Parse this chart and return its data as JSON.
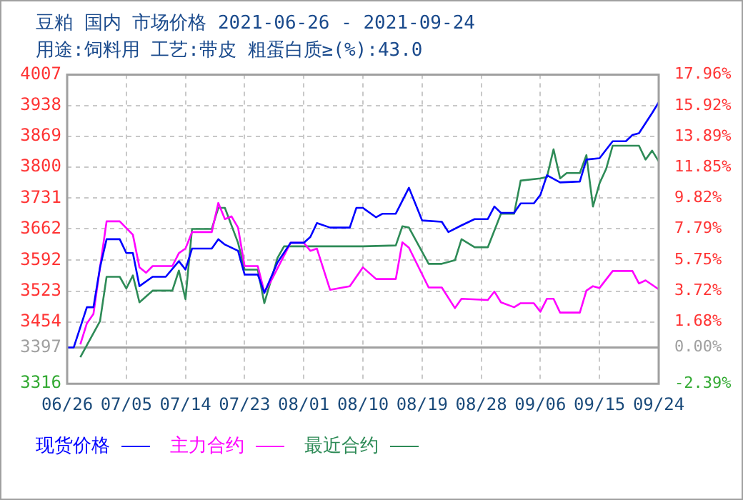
{
  "chart_data": {
    "type": "line",
    "title": "豆粕 国内 市场价格 2021-06-26 - 2021-09-24",
    "subtitle": "用途:饲料用 工艺:带皮 粗蛋白质≥(%):43.0",
    "xlim": [
      "--06-26",
      "--09-24"
    ],
    "xticks": [
      {
        "value": "--06-26",
        "label": "06/26"
      },
      {
        "value": "--07-05",
        "label": "07/05"
      },
      {
        "value": "--07-14",
        "label": "07/14"
      },
      {
        "value": "--07-23",
        "label": "07/23"
      },
      {
        "value": "--08-01",
        "label": "08/01"
      },
      {
        "value": "--08-10",
        "label": "08/10"
      },
      {
        "value": "--08-19",
        "label": "08/19"
      },
      {
        "value": "--08-28",
        "label": "08/28"
      },
      {
        "value": "--09-06",
        "label": "09/06"
      },
      {
        "value": "--09-15",
        "label": "09/15"
      },
      {
        "value": "--09-24",
        "label": "09/24"
      }
    ],
    "ylim": [
      3316,
      4007
    ],
    "yticks": [
      3316,
      3397,
      3454,
      3523,
      3592,
      3662,
      3731,
      3800,
      3869,
      3938,
      4007
    ],
    "y2lim": [
      -2.39,
      17.96
    ],
    "y2ticks": [
      {
        "value": -2.39,
        "label": "-2.39%"
      },
      {
        "value": 0,
        "label": "0.00%"
      },
      {
        "value": 1.68,
        "label": "1.68%"
      },
      {
        "value": 3.72,
        "label": "3.72%"
      },
      {
        "value": 5.75,
        "label": "5.75%"
      },
      {
        "value": 7.79,
        "label": "7.79%"
      },
      {
        "value": 9.82,
        "label": "9.82%"
      },
      {
        "value": 11.85,
        "label": "11.85%"
      },
      {
        "value": 13.89,
        "label": "13.89%"
      },
      {
        "value": 15.92,
        "label": "15.92%"
      },
      {
        "value": 17.96,
        "label": "17.96%"
      }
    ],
    "ref_lines": [
      {
        "axis": "y",
        "value": 3397,
        "color": "#a0a0a0"
      }
    ],
    "grid": true,
    "legend": "bottom",
    "marker": "none",
    "series": [
      {
        "name": "现货价格",
        "color": "#0000ff",
        "x": [
          "--06-26",
          "--06-27",
          "--06-29",
          "--06-30",
          "--07-01",
          "--07-02",
          "--07-04",
          "--07-05",
          "--07-06",
          "--07-07",
          "--07-09",
          "--07-11",
          "--07-13",
          "--07-14",
          "--07-15",
          "--07-18",
          "--07-19",
          "--07-20",
          "--07-22",
          "--07-23",
          "--07-25",
          "--07-26",
          "--07-28",
          "--07-30",
          "--08-01",
          "--08-02",
          "--08-03",
          "--08-05",
          "--08-08",
          "--08-09",
          "--08-10",
          "--08-12",
          "--08-13",
          "--08-15",
          "--08-17",
          "--08-19",
          "--08-22",
          "--08-23",
          "--08-25",
          "--08-27",
          "--08-29",
          "--08-30",
          "--08-31",
          "--09-02",
          "--09-03",
          "--09-05",
          "--09-06",
          "--09-07",
          "--09-09",
          "--09-12",
          "--09-13",
          "--09-15",
          "--09-17",
          "--09-19",
          "--09-20",
          "--09-21",
          "--09-23",
          "--09-24"
        ],
        "values": [
          3397,
          3397,
          3487,
          3487,
          3576,
          3639,
          3639,
          3608,
          3608,
          3534,
          3555,
          3555,
          3590,
          3571,
          3618,
          3618,
          3639,
          3627,
          3613,
          3560,
          3560,
          3519,
          3587,
          3631,
          3631,
          3644,
          3675,
          3665,
          3665,
          3709,
          3709,
          3688,
          3696,
          3696,
          3754,
          3681,
          3678,
          3655,
          3670,
          3684,
          3684,
          3712,
          3698,
          3698,
          3719,
          3719,
          3738,
          3782,
          3766,
          3768,
          3817,
          3820,
          3858,
          3858,
          3872,
          3876,
          3921,
          3945
        ]
      },
      {
        "name": "主力合约",
        "color": "#ff00ff",
        "x": [
          "--06-28",
          "--06-29",
          "--06-30",
          "--07-01",
          "--07-02",
          "--07-04",
          "--07-06",
          "--07-07",
          "--07-08",
          "--07-09",
          "--07-12",
          "--07-13",
          "--07-14",
          "--07-15",
          "--07-18",
          "--07-19",
          "--07-20",
          "--07-21",
          "--07-22",
          "--07-23",
          "--07-25",
          "--07-26",
          "--07-27",
          "--07-30",
          "--08-01",
          "--08-02",
          "--08-03",
          "--08-05",
          "--08-08",
          "--08-10",
          "--08-12",
          "--08-15",
          "--08-16",
          "--08-17",
          "--08-20",
          "--08-22",
          "--08-24",
          "--08-25",
          "--08-29",
          "--08-30",
          "--08-31",
          "--09-02",
          "--09-03",
          "--09-05",
          "--09-06",
          "--09-07",
          "--09-08",
          "--09-09",
          "--09-12",
          "--09-13",
          "--09-14",
          "--09-15",
          "--09-17",
          "--09-20",
          "--09-21",
          "--09-22",
          "--09-24"
        ],
        "values": [
          3404,
          3451,
          3472,
          3576,
          3679,
          3679,
          3649,
          3576,
          3564,
          3579,
          3579,
          3608,
          3618,
          3655,
          3655,
          3720,
          3684,
          3690,
          3665,
          3579,
          3579,
          3521,
          3545,
          3631,
          3631,
          3613,
          3618,
          3526,
          3534,
          3576,
          3550,
          3550,
          3632,
          3620,
          3531,
          3531,
          3485,
          3506,
          3503,
          3522,
          3498,
          3487,
          3496,
          3496,
          3477,
          3506,
          3506,
          3475,
          3475,
          3524,
          3534,
          3530,
          3568,
          3568,
          3540,
          3547,
          3527
        ]
      },
      {
        "name": "最近合约",
        "color": "#2e8b57",
        "x": [
          "--06-28",
          "--07-01",
          "--07-02",
          "--07-04",
          "--07-05",
          "--07-06",
          "--07-07",
          "--07-09",
          "--07-12",
          "--07-13",
          "--07-14",
          "--07-15",
          "--07-18",
          "--07-19",
          "--07-20",
          "--07-22",
          "--07-23",
          "--07-25",
          "--07-26",
          "--07-28",
          "--07-29",
          "--08-10",
          "--08-15",
          "--08-16",
          "--08-17",
          "--08-20",
          "--08-22",
          "--08-24",
          "--08-25",
          "--08-27",
          "--08-29",
          "--08-31",
          "--09-02",
          "--09-03",
          "--09-06",
          "--09-07",
          "--09-08",
          "--09-09",
          "--09-10",
          "--09-12",
          "--09-13",
          "--09-14",
          "--09-15",
          "--09-16",
          "--09-17",
          "--09-21",
          "--09-22",
          "--09-23",
          "--09-24"
        ],
        "values": [
          3375,
          3456,
          3555,
          3555,
          3529,
          3558,
          3498,
          3524,
          3524,
          3569,
          3505,
          3662,
          3662,
          3709,
          3709,
          3631,
          3571,
          3571,
          3496,
          3597,
          3623,
          3623,
          3625,
          3668,
          3665,
          3584,
          3584,
          3592,
          3639,
          3621,
          3621,
          3696,
          3696,
          3770,
          3775,
          3778,
          3840,
          3775,
          3787,
          3787,
          3827,
          3712,
          3764,
          3796,
          3848,
          3848,
          3817,
          3837,
          3813
        ]
      }
    ]
  }
}
